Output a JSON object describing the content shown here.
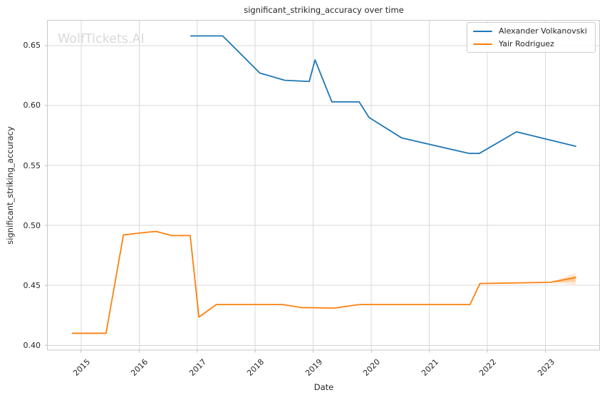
{
  "figure": {
    "watermark": "WolfTickets.AI"
  },
  "chart_data": {
    "type": "line",
    "title": "significant_striking_accuracy over time",
    "xlabel": "Date",
    "ylabel": "significant_striking_accuracy",
    "grid": true,
    "legend_position": "upper right",
    "xlim": [
      2014.42,
      2023.93
    ],
    "ylim": [
      0.396,
      0.671
    ],
    "x_tick_values": [
      2015,
      2016,
      2017,
      2018,
      2019,
      2020,
      2021,
      2022,
      2023
    ],
    "x_tick_labels": [
      "2015",
      "2016",
      "2017",
      "2018",
      "2019",
      "2020",
      "2021",
      "2022",
      "2023"
    ],
    "y_tick_values": [
      0.4,
      0.45,
      0.5,
      0.55,
      0.6,
      0.65
    ],
    "y_tick_labels": [
      "0.40",
      "0.45",
      "0.50",
      "0.55",
      "0.60",
      "0.65"
    ],
    "series": [
      {
        "name": "Alexander Volkanovski",
        "color": "#1f77b4",
        "x": [
          2016.89,
          2017.44,
          2018.08,
          2018.51,
          2018.93,
          2019.03,
          2019.32,
          2019.79,
          2019.96,
          2020.52,
          2021.68,
          2021.86,
          2022.5,
          2023.52
        ],
        "y": [
          0.658,
          0.658,
          0.627,
          0.621,
          0.62,
          0.638,
          0.603,
          0.603,
          0.59,
          0.573,
          0.56,
          0.56,
          0.578,
          0.566
        ]
      },
      {
        "name": "Yair Rodriguez",
        "color": "#ff7f0e",
        "x": [
          2014.85,
          2015.43,
          2015.73,
          2015.99,
          2016.29,
          2016.56,
          2016.88,
          2017.03,
          2017.33,
          2018.47,
          2018.79,
          2019.36,
          2019.79,
          2021.7,
          2021.87,
          2023.08,
          2023.52
        ],
        "y": [
          0.41,
          0.41,
          0.492,
          0.4935,
          0.495,
          0.4915,
          0.4915,
          0.4235,
          0.434,
          0.434,
          0.4315,
          0.431,
          0.434,
          0.434,
          0.4515,
          0.4525,
          0.4565
        ],
        "uncertainty_band": {
          "x": [
            2023.08,
            2023.52
          ],
          "upper": [
            0.4525,
            0.4605
          ],
          "lower": [
            0.4525,
            0.4505
          ]
        },
        "uncertainty_band_inner": {
          "x": [
            2023.08,
            2023.52
          ],
          "upper": [
            0.4525,
            0.458
          ],
          "lower": [
            0.4525,
            0.453
          ]
        }
      }
    ],
    "colors": {
      "background": "#ffffff",
      "grid": "#d9d9d9",
      "spine": "#c9c9c9",
      "tick_mark": "#b5b5b5",
      "text": "#262626",
      "watermark": "#d9d9d9",
      "band_fill": "#ff7f0e"
    }
  }
}
